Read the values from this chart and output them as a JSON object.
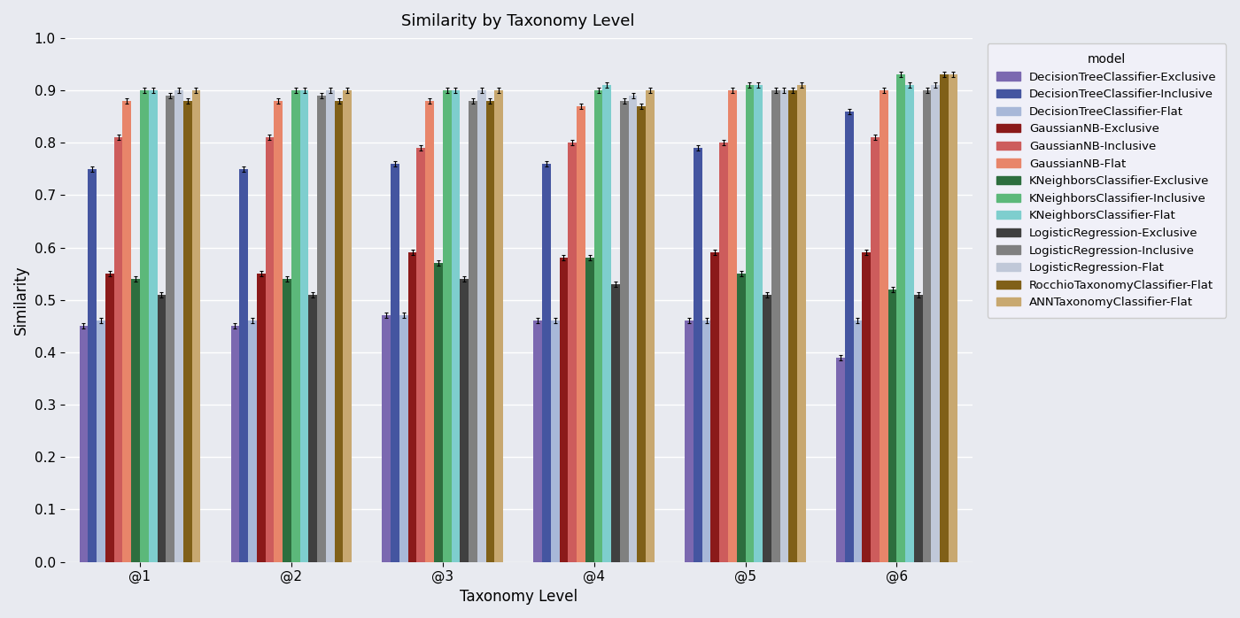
{
  "title": "Similarity by Taxonomy Level",
  "xlabel": "Taxonomy Level",
  "ylabel": "Similarity",
  "taxonomy_levels": [
    "@1",
    "@2",
    "@3",
    "@4",
    "@5",
    "@6"
  ],
  "models": [
    "DecisionTreeClassifier-Exclusive",
    "DecisionTreeClassifier-Inclusive",
    "DecisionTreeClassifier-Flat",
    "GaussianNB-Exclusive",
    "GaussianNB-Inclusive",
    "GaussianNB-Flat",
    "KNeighborsClassifier-Exclusive",
    "KNeighborsClassifier-Inclusive",
    "KNeighborsClassifier-Flat",
    "LogisticRegression-Exclusive",
    "LogisticRegression-Inclusive",
    "LogisticRegression-Flat",
    "RocchioTaxonomyClassifier-Flat",
    "ANNTaxonomyClassifier-Flat"
  ],
  "colors": [
    "#7b68b0",
    "#4455a0",
    "#a8b8d8",
    "#8b1a1a",
    "#cd5c5c",
    "#e8856a",
    "#2d6e3e",
    "#5cb87a",
    "#7ecece",
    "#404040",
    "#808080",
    "#c0c8d8",
    "#806018",
    "#c8a870"
  ],
  "values": {
    "DecisionTreeClassifier-Exclusive": [
      0.45,
      0.45,
      0.47,
      0.46,
      0.46,
      0.39
    ],
    "DecisionTreeClassifier-Inclusive": [
      0.75,
      0.75,
      0.76,
      0.76,
      0.79,
      0.86
    ],
    "DecisionTreeClassifier-Flat": [
      0.46,
      0.46,
      0.47,
      0.46,
      0.46,
      0.46
    ],
    "GaussianNB-Exclusive": [
      0.55,
      0.55,
      0.59,
      0.58,
      0.59,
      0.59
    ],
    "GaussianNB-Inclusive": [
      0.81,
      0.81,
      0.79,
      0.8,
      0.8,
      0.81
    ],
    "GaussianNB-Flat": [
      0.88,
      0.88,
      0.88,
      0.87,
      0.9,
      0.9
    ],
    "KNeighborsClassifier-Exclusive": [
      0.54,
      0.54,
      0.57,
      0.58,
      0.55,
      0.52
    ],
    "KNeighborsClassifier-Inclusive": [
      0.9,
      0.9,
      0.9,
      0.9,
      0.91,
      0.93
    ],
    "KNeighborsClassifier-Flat": [
      0.9,
      0.9,
      0.9,
      0.91,
      0.91,
      0.91
    ],
    "LogisticRegression-Exclusive": [
      0.51,
      0.51,
      0.54,
      0.53,
      0.51,
      0.51
    ],
    "LogisticRegression-Inclusive": [
      0.89,
      0.89,
      0.88,
      0.88,
      0.9,
      0.9
    ],
    "LogisticRegression-Flat": [
      0.9,
      0.9,
      0.9,
      0.89,
      0.9,
      0.91
    ],
    "RocchioTaxonomyClassifier-Flat": [
      0.88,
      0.88,
      0.88,
      0.87,
      0.9,
      0.93
    ],
    "ANNTaxonomyClassifier-Flat": [
      0.9,
      0.9,
      0.9,
      0.9,
      0.91,
      0.93
    ]
  },
  "errors": {
    "DecisionTreeClassifier-Exclusive": [
      0.005,
      0.005,
      0.005,
      0.005,
      0.005,
      0.005
    ],
    "DecisionTreeClassifier-Inclusive": [
      0.005,
      0.005,
      0.005,
      0.005,
      0.005,
      0.005
    ],
    "DecisionTreeClassifier-Flat": [
      0.005,
      0.005,
      0.005,
      0.005,
      0.005,
      0.005
    ],
    "GaussianNB-Exclusive": [
      0.005,
      0.005,
      0.005,
      0.005,
      0.005,
      0.005
    ],
    "GaussianNB-Inclusive": [
      0.005,
      0.005,
      0.005,
      0.005,
      0.005,
      0.005
    ],
    "GaussianNB-Flat": [
      0.005,
      0.005,
      0.005,
      0.005,
      0.005,
      0.005
    ],
    "KNeighborsClassifier-Exclusive": [
      0.005,
      0.005,
      0.005,
      0.005,
      0.005,
      0.005
    ],
    "KNeighborsClassifier-Inclusive": [
      0.005,
      0.005,
      0.005,
      0.005,
      0.005,
      0.005
    ],
    "KNeighborsClassifier-Flat": [
      0.005,
      0.005,
      0.005,
      0.005,
      0.005,
      0.005
    ],
    "LogisticRegression-Exclusive": [
      0.005,
      0.005,
      0.005,
      0.005,
      0.005,
      0.005
    ],
    "LogisticRegression-Inclusive": [
      0.005,
      0.005,
      0.005,
      0.005,
      0.005,
      0.005
    ],
    "LogisticRegression-Flat": [
      0.005,
      0.005,
      0.005,
      0.005,
      0.005,
      0.005
    ],
    "RocchioTaxonomyClassifier-Flat": [
      0.005,
      0.005,
      0.005,
      0.005,
      0.005,
      0.005
    ],
    "ANNTaxonomyClassifier-Flat": [
      0.005,
      0.005,
      0.005,
      0.005,
      0.005,
      0.005
    ]
  },
  "ylim": [
    0.0,
    1.0
  ],
  "yticks": [
    0.0,
    0.1,
    0.2,
    0.3,
    0.4,
    0.5,
    0.6,
    0.7,
    0.8,
    0.9,
    1.0
  ],
  "background_color": "#e8eaf0",
  "grid_color": "#ffffff",
  "legend_title": "model",
  "figsize": [
    14.0,
    6.98
  ],
  "dpi": 100
}
